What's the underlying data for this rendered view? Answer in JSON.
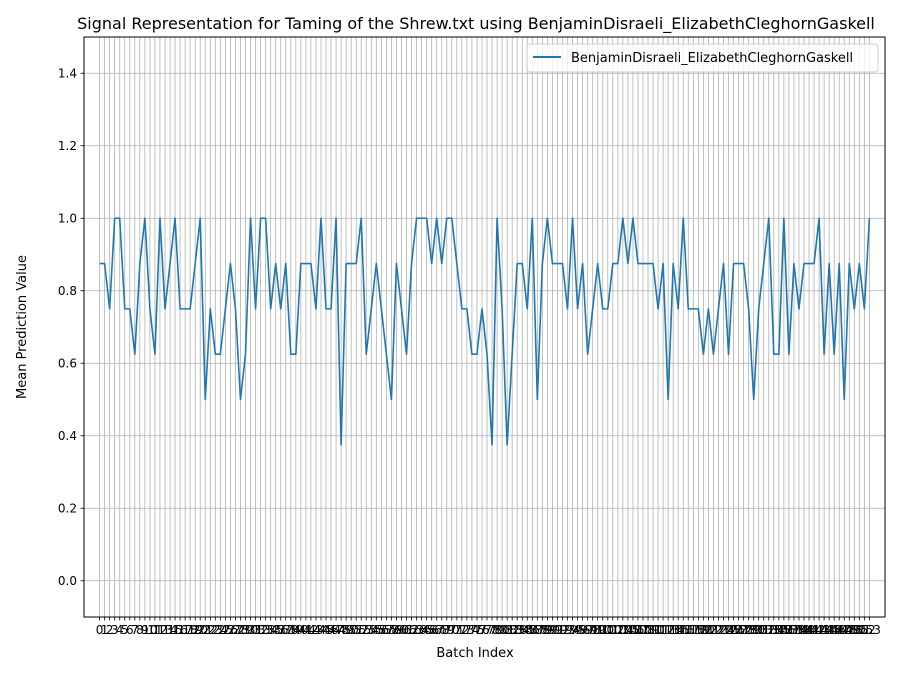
{
  "chart_data": {
    "type": "line",
    "title": "Signal Representation for Taming of the Shrew.txt using BenjaminDisraeli_ElizabethCleghornGaskell",
    "xlabel": "Batch Index",
    "ylabel": "Mean Prediction Value",
    "xlim": [
      -3.1,
      156.1
    ],
    "ylim": [
      -0.1,
      1.5
    ],
    "yticks": [
      0.0,
      0.2,
      0.4,
      0.6,
      0.8,
      1.0,
      1.2,
      1.4
    ],
    "grid": true,
    "legend_position": "top-right",
    "series": [
      {
        "name": "BenjaminDisraeli_ElizabethCleghornGaskell",
        "color": "#1f77b4",
        "values": [
          0.875,
          0.875,
          0.75,
          1.0,
          1.0,
          0.75,
          0.75,
          0.625,
          0.875,
          1.0,
          0.75,
          0.625,
          1.0,
          0.75,
          0.875,
          1.0,
          0.75,
          0.75,
          0.75,
          0.875,
          1.0,
          0.5,
          0.75,
          0.625,
          0.625,
          0.75,
          0.875,
          0.75,
          0.5,
          0.625,
          1.0,
          0.75,
          1.0,
          1.0,
          0.75,
          0.875,
          0.75,
          0.875,
          0.625,
          0.625,
          0.875,
          0.875,
          0.875,
          0.75,
          1.0,
          0.75,
          0.75,
          1.0,
          0.375,
          0.875,
          0.875,
          0.875,
          1.0,
          0.625,
          0.75,
          0.875,
          0.75,
          0.625,
          0.5,
          0.875,
          0.75,
          0.625,
          0.875,
          1.0,
          1.0,
          1.0,
          0.875,
          1.0,
          0.875,
          1.0,
          1.0,
          0.875,
          0.75,
          0.75,
          0.625,
          0.625,
          0.75,
          0.625,
          0.375,
          1.0,
          0.75,
          0.375,
          0.625,
          0.875,
          0.875,
          0.75,
          1.0,
          0.5,
          0.875,
          1.0,
          0.875,
          0.875,
          0.875,
          0.75,
          1.0,
          0.75,
          0.875,
          0.625,
          0.75,
          0.875,
          0.75,
          0.75,
          0.875,
          0.875,
          1.0,
          0.875,
          1.0,
          0.875,
          0.875,
          0.875,
          0.875,
          0.75,
          0.875,
          0.5,
          0.875,
          0.75,
          1.0,
          0.75,
          0.75,
          0.75,
          0.625,
          0.75,
          0.625,
          0.75,
          0.875,
          0.625,
          0.875,
          0.875,
          0.875,
          0.75,
          0.5,
          0.75,
          0.875,
          1.0,
          0.625,
          0.625,
          1.0,
          0.625,
          0.875,
          0.75,
          0.875,
          0.875,
          0.875,
          1.0,
          0.625,
          0.875,
          0.625,
          0.875,
          0.5,
          0.875,
          0.75,
          0.875,
          0.75,
          1.0
        ]
      }
    ]
  }
}
